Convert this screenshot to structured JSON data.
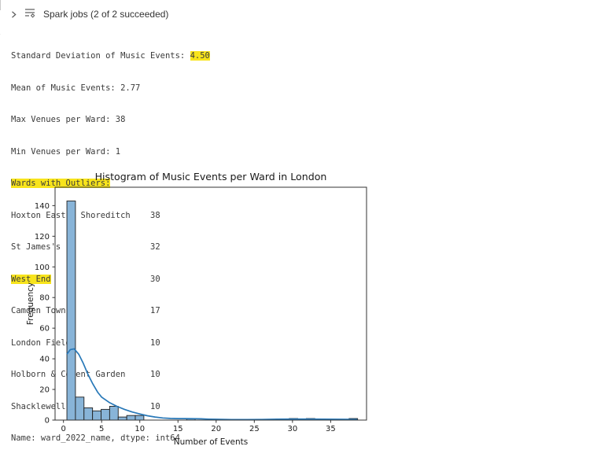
{
  "header": {
    "title": "Spark jobs (2 of 2 succeeded)"
  },
  "output": {
    "text_color": "#3a3a3a",
    "highlight_color": "#f8e41c",
    "lines": [
      {
        "pre": "Standard Deviation of Music Events: ",
        "hl": "4.50",
        "post": ""
      },
      {
        "pre": "Mean of Music Events: 2.77",
        "hl": "",
        "post": ""
      },
      {
        "pre": "Max Venues per Ward: 38",
        "hl": "",
        "post": ""
      },
      {
        "pre": "Min Venues per Ward: 1",
        "hl": "",
        "post": ""
      },
      {
        "pre": "",
        "hl": "Wards with Outliers:",
        "post": ""
      },
      {
        "pre": "Hoxton East & Shoreditch    38",
        "hl": "",
        "post": ""
      },
      {
        "pre": "St James's                  32",
        "hl": "",
        "post": ""
      },
      {
        "pre": "",
        "hl": "West End",
        "post": "                    30"
      },
      {
        "pre": "Camden Town                 17",
        "hl": "",
        "post": ""
      },
      {
        "pre": "London Fields               10",
        "hl": "",
        "post": ""
      },
      {
        "pre": "Holborn & Covent Garden     10",
        "hl": "",
        "post": ""
      },
      {
        "pre": "Shacklewell                 10",
        "hl": "",
        "post": ""
      },
      {
        "pre": "Name: ward_2022_name, dtype: int64",
        "hl": "",
        "post": ""
      }
    ]
  },
  "chart_data": {
    "type": "bar",
    "subtype": "histogram-with-kde",
    "title": "Histogram of Music Events per Ward in London",
    "xlabel": "Number of Events",
    "ylabel": "Frequency",
    "x_ticks": [
      0,
      5,
      10,
      15,
      20,
      25,
      30,
      35
    ],
    "y_ticks": [
      0,
      20,
      40,
      60,
      80,
      100,
      120,
      140
    ],
    "xlim": [
      -1.1,
      39.7
    ],
    "ylim": [
      0,
      152
    ],
    "grid": false,
    "legend": false,
    "bin_start": 0.45,
    "bin_width": 1.12,
    "bins": [
      {
        "k": 0,
        "count": 143
      },
      {
        "k": 1,
        "count": 15
      },
      {
        "k": 2,
        "count": 8
      },
      {
        "k": 3,
        "count": 6
      },
      {
        "k": 4,
        "count": 7
      },
      {
        "k": 5,
        "count": 9
      },
      {
        "k": 6,
        "count": 2
      },
      {
        "k": 7,
        "count": 3
      },
      {
        "k": 8,
        "count": 3
      },
      {
        "k": 14,
        "count": 1
      },
      {
        "k": 26,
        "count": 1
      },
      {
        "k": 28,
        "count": 1
      },
      {
        "k": 33,
        "count": 1
      }
    ],
    "kde": [
      [
        0.45,
        43
      ],
      [
        0.9,
        46
      ],
      [
        1.4,
        46.5
      ],
      [
        2,
        43
      ],
      [
        2.6,
        37
      ],
      [
        3.2,
        30
      ],
      [
        3.8,
        24
      ],
      [
        4.5,
        18
      ],
      [
        5,
        15
      ],
      [
        6,
        11.5
      ],
      [
        7,
        9
      ],
      [
        8,
        7
      ],
      [
        9,
        5.3
      ],
      [
        10,
        4
      ],
      [
        11,
        2.8
      ],
      [
        12,
        2
      ],
      [
        13,
        1.4
      ],
      [
        14,
        1.1
      ],
      [
        15,
        1
      ],
      [
        16,
        0.95
      ],
      [
        17,
        0.9
      ],
      [
        18,
        0.8
      ],
      [
        19,
        0.6
      ],
      [
        20,
        0.5
      ],
      [
        22,
        0.35
      ],
      [
        24,
        0.3
      ],
      [
        26,
        0.4
      ],
      [
        28,
        0.55
      ],
      [
        30,
        0.65
      ],
      [
        31,
        0.68
      ],
      [
        32,
        0.65
      ],
      [
        34,
        0.55
      ],
      [
        36,
        0.5
      ],
      [
        38,
        0.45
      ],
      [
        38.5,
        0.4
      ]
    ],
    "colors": {
      "bar_fill": "#88b4d8",
      "bar_edge": "#1f1f1f",
      "kde_line": "#2878b8",
      "axis": "#333333",
      "text": "#1a1a1a"
    }
  }
}
